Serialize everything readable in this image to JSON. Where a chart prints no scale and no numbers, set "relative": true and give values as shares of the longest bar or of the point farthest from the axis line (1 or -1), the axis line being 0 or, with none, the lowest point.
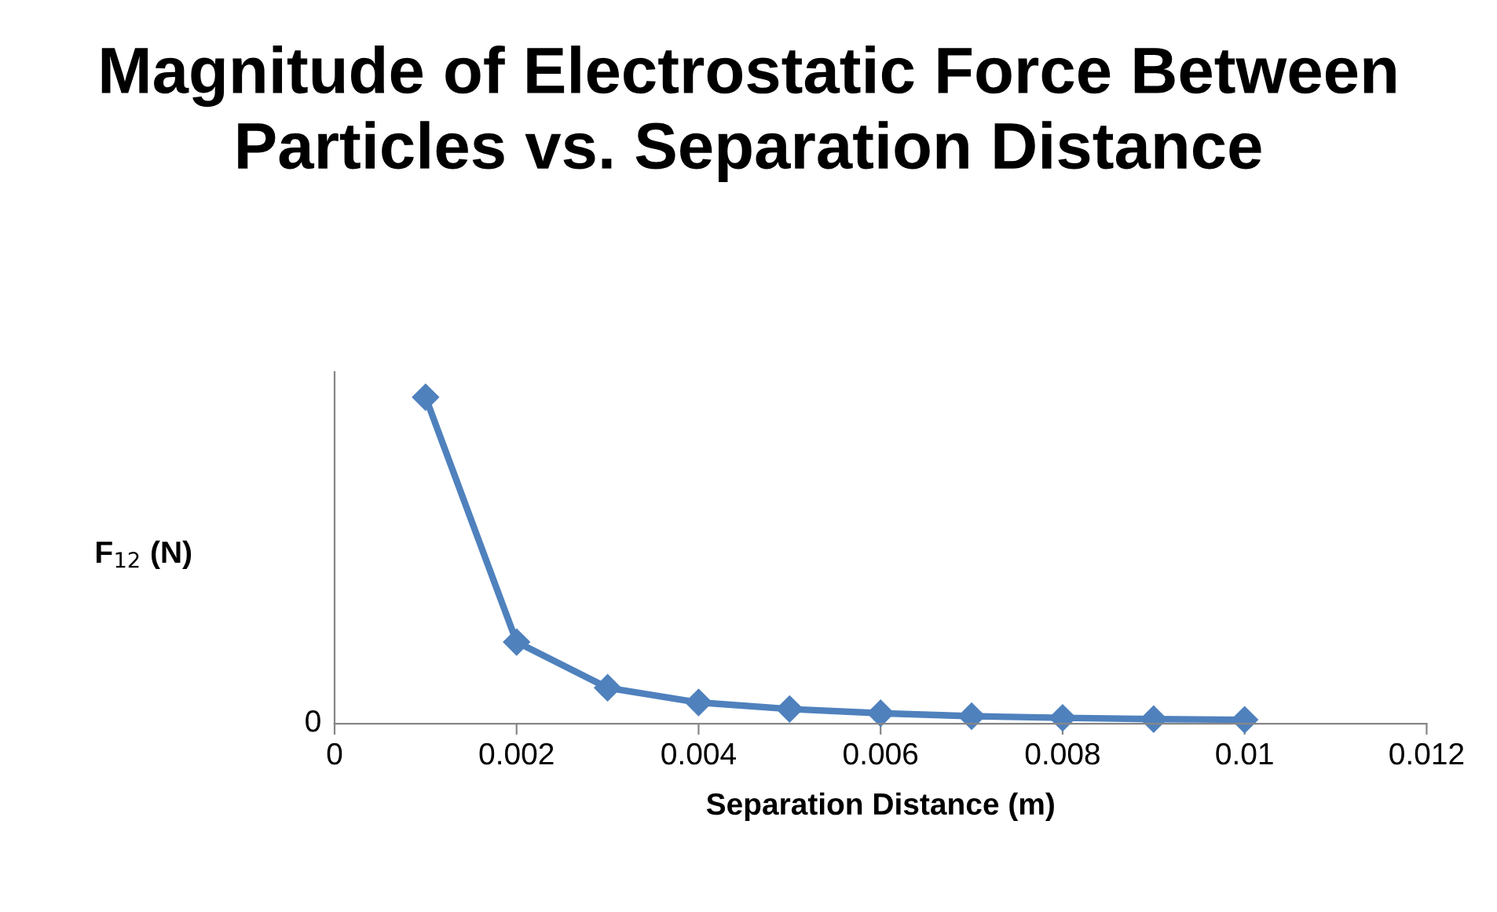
{
  "chart_data": {
    "type": "line",
    "title": "Magnitude of Electrostatic Force Between Particles vs. Separation Distance",
    "xlabel": "Separation Distance (m)",
    "ylabel": "F$_{12}$ (N)",
    "x": [
      0.001,
      0.002,
      0.003,
      0.004,
      0.005,
      0.006,
      0.007,
      0.008,
      0.009,
      0.01
    ],
    "series": [
      {
        "color": "#4f81bd",
        "values": [
          1,
          0.25,
          0.11,
          0.065,
          0.045,
          0.032,
          0.023,
          0.018,
          0.014,
          0.012
        ]
      }
    ],
    "relative": true,
    "xlim": [
      0,
      0.012
    ],
    "xticks": [
      0,
      0.002,
      0.004,
      0.006,
      0.008,
      0.01,
      0.012
    ],
    "annotations": [
      "0"
    ],
    "marker": "diamond",
    "line_style": "solid",
    "grid": false,
    "legend": false
  }
}
